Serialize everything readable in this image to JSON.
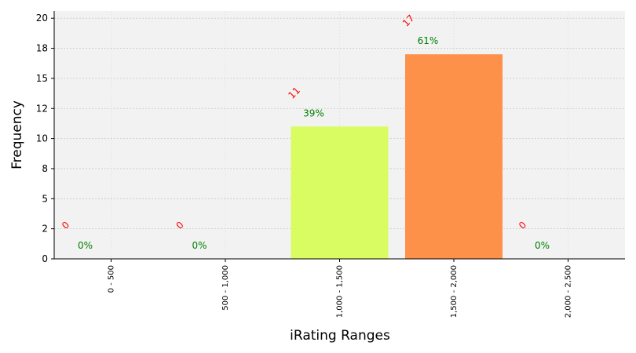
{
  "chart_data": {
    "type": "bar",
    "categories": [
      "0 - 500",
      "500 - 1,000",
      "1,000 - 1,500",
      "1,500 - 2,000",
      "2,000 - 2,500"
    ],
    "values": [
      0,
      0,
      11,
      17,
      0
    ],
    "count_labels": [
      "0",
      "0",
      "11",
      "17",
      "0"
    ],
    "percent_labels": [
      "0%",
      "0%",
      "39%",
      "61%",
      "0%"
    ],
    "bar_colors": [
      "#cccccc",
      "#cccccc",
      "#d9fc62",
      "#fd914a",
      "#cccccc"
    ],
    "count_label_color": "#ff0000",
    "percent_label_color": "#008000",
    "background_color": "#f2f2f2",
    "xlabel": "iRating Ranges",
    "ylabel": "Frequency",
    "ylim": [
      0,
      20.6
    ],
    "yticks": [
      0,
      2,
      5,
      8,
      10,
      12,
      15,
      18,
      20
    ],
    "ytick_values": [
      0,
      2.5,
      5,
      7.5,
      10,
      12.5,
      15,
      17.5,
      20
    ],
    "grid": true
  }
}
